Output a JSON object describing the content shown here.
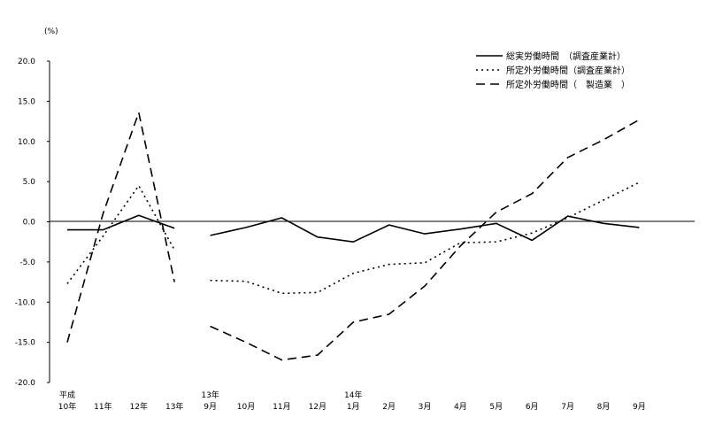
{
  "chart_data": {
    "type": "line",
    "yunit": "(%)",
    "ylim": [
      -20,
      20
    ],
    "ytick_labels": [
      "20.0",
      "15.0",
      "10.0",
      "5.0",
      "0.0",
      "-5.0",
      "-10.0",
      "-15.0",
      "-20.0"
    ],
    "grid": false,
    "legend_position": "top-right",
    "categories": [
      {
        "top": "平成",
        "bottom": "10年"
      },
      {
        "top": "",
        "bottom": "11年"
      },
      {
        "top": "",
        "bottom": "12年"
      },
      {
        "top": "",
        "bottom": "13年"
      },
      {
        "top": "13年",
        "bottom": "9月"
      },
      {
        "top": "",
        "bottom": "10月"
      },
      {
        "top": "",
        "bottom": "11月"
      },
      {
        "top": "",
        "bottom": "12月"
      },
      {
        "top": "14年",
        "bottom": "1月"
      },
      {
        "top": "",
        "bottom": "2月"
      },
      {
        "top": "",
        "bottom": "3月"
      },
      {
        "top": "",
        "bottom": "4月"
      },
      {
        "top": "",
        "bottom": "5月"
      },
      {
        "top": "",
        "bottom": "6月"
      },
      {
        "top": "",
        "bottom": "7月"
      },
      {
        "top": "",
        "bottom": "8月"
      },
      {
        "top": "",
        "bottom": "9月"
      }
    ],
    "segments": [
      [
        0,
        3
      ],
      [
        4,
        16
      ]
    ],
    "series": [
      {
        "name": "総実労働時間　（調査産業計）",
        "style": "solid",
        "color": "#000000",
        "values": [
          -1.0,
          -1.0,
          0.8,
          -0.8,
          -1.7,
          -0.7,
          0.5,
          -1.9,
          -2.5,
          -0.4,
          -1.5,
          -0.9,
          -0.2,
          -2.3,
          0.7,
          -0.2,
          -0.7
        ]
      },
      {
        "name": "所定外労働時間（調査産業計）",
        "style": "dotted",
        "color": "#000000",
        "values": [
          -7.7,
          -1.8,
          4.5,
          -3.5,
          -7.3,
          -7.4,
          -8.9,
          -8.8,
          -6.4,
          -5.3,
          -5.1,
          -2.6,
          -2.5,
          -1.4,
          0.5,
          2.7,
          4.9
        ]
      },
      {
        "name": "所定外労働時間（　製造業　）",
        "style": "dashed",
        "color": "#000000",
        "values": [
          -15.0,
          1.0,
          13.6,
          -7.5,
          -13.0,
          -15.0,
          -17.2,
          -16.6,
          -12.5,
          -11.5,
          -8.0,
          -3.0,
          1.2,
          3.5,
          8.0,
          10.2,
          12.7
        ]
      }
    ]
  }
}
